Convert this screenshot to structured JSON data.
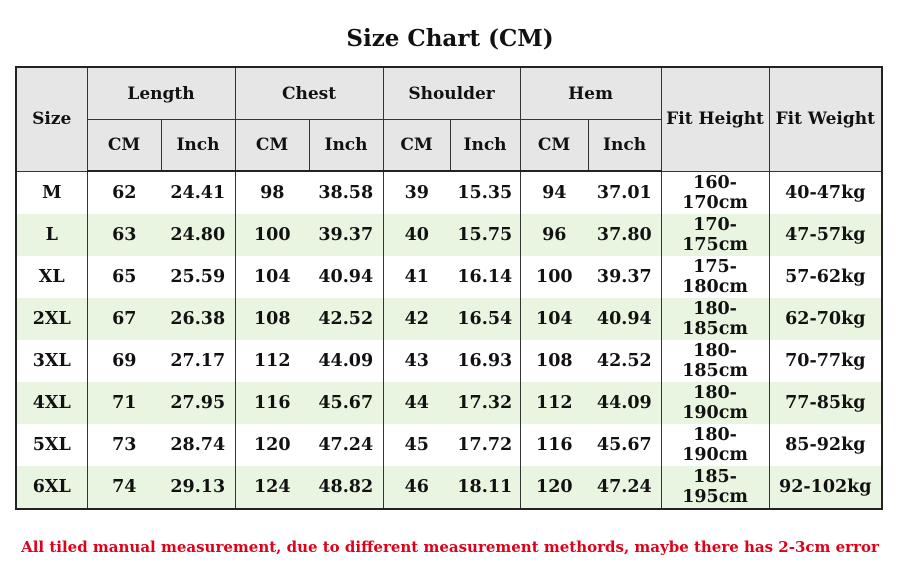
{
  "title": "Size Chart (CM)",
  "header": {
    "size": "Size",
    "groups": [
      "Length",
      "Chest",
      "Shoulder",
      "Hem"
    ],
    "sub_cm": "CM",
    "sub_inch": "Inch",
    "fit_height": "Fit Height",
    "fit_weight": "Fit Weight"
  },
  "rows": [
    {
      "size": "M",
      "length_cm": "62",
      "length_in": "24.41",
      "chest_cm": "98",
      "chest_in": "38.58",
      "shoulder_cm": "39",
      "shoulder_in": "15.35",
      "hem_cm": "94",
      "hem_in": "37.01",
      "fit_height": "160-170cm",
      "fit_weight": "40-47kg"
    },
    {
      "size": "L",
      "length_cm": "63",
      "length_in": "24.80",
      "chest_cm": "100",
      "chest_in": "39.37",
      "shoulder_cm": "40",
      "shoulder_in": "15.75",
      "hem_cm": "96",
      "hem_in": "37.80",
      "fit_height": "170-175cm",
      "fit_weight": "47-57kg"
    },
    {
      "size": "XL",
      "length_cm": "65",
      "length_in": "25.59",
      "chest_cm": "104",
      "chest_in": "40.94",
      "shoulder_cm": "41",
      "shoulder_in": "16.14",
      "hem_cm": "100",
      "hem_in": "39.37",
      "fit_height": "175-180cm",
      "fit_weight": "57-62kg"
    },
    {
      "size": "2XL",
      "length_cm": "67",
      "length_in": "26.38",
      "chest_cm": "108",
      "chest_in": "42.52",
      "shoulder_cm": "42",
      "shoulder_in": "16.54",
      "hem_cm": "104",
      "hem_in": "40.94",
      "fit_height": "180-185cm",
      "fit_weight": "62-70kg"
    },
    {
      "size": "3XL",
      "length_cm": "69",
      "length_in": "27.17",
      "chest_cm": "112",
      "chest_in": "44.09",
      "shoulder_cm": "43",
      "shoulder_in": "16.93",
      "hem_cm": "108",
      "hem_in": "42.52",
      "fit_height": "180-185cm",
      "fit_weight": "70-77kg"
    },
    {
      "size": "4XL",
      "length_cm": "71",
      "length_in": "27.95",
      "chest_cm": "116",
      "chest_in": "45.67",
      "shoulder_cm": "44",
      "shoulder_in": "17.32",
      "hem_cm": "112",
      "hem_in": "44.09",
      "fit_height": "180-190cm",
      "fit_weight": "77-85kg"
    },
    {
      "size": "5XL",
      "length_cm": "73",
      "length_in": "28.74",
      "chest_cm": "120",
      "chest_in": "47.24",
      "shoulder_cm": "45",
      "shoulder_in": "17.72",
      "hem_cm": "116",
      "hem_in": "45.67",
      "fit_height": "180-190cm",
      "fit_weight": "85-92kg"
    },
    {
      "size": "6XL",
      "length_cm": "74",
      "length_in": "29.13",
      "chest_cm": "124",
      "chest_in": "48.82",
      "shoulder_cm": "46",
      "shoulder_in": "18.11",
      "hem_cm": "120",
      "hem_in": "47.24",
      "fit_height": "185-195cm",
      "fit_weight": "92-102kg"
    }
  ],
  "note": "All tiled manual measurement, due to different measurement methords, maybe there has 2-3cm error",
  "colors": {
    "header_bg": "#e6e6e6",
    "row_alt_bg": "#e9f5e1",
    "note_text": "#e0001a"
  }
}
